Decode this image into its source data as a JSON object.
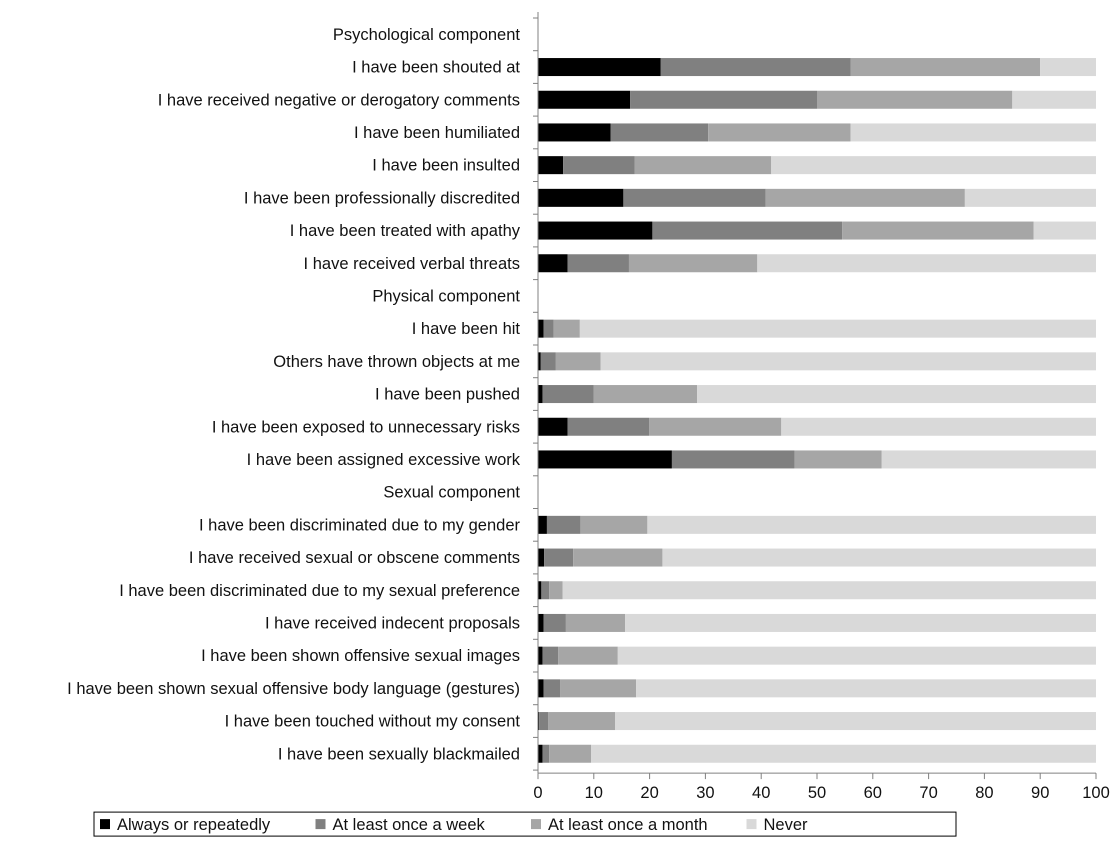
{
  "chart_data": {
    "type": "bar",
    "orientation": "horizontal",
    "stacked": true,
    "categories": [
      "Psychological component",
      "I have been shouted at",
      "I have received negative or derogatory comments",
      "I have been humiliated",
      "I have been insulted",
      "I have been professionally discredited",
      "I have been treated with apathy",
      "I have received verbal threats",
      "Physical component",
      "I have been hit",
      "Others have thrown objects at me",
      "I have been pushed",
      "I have been exposed to unnecessary risks",
      "I have been assigned excessive work",
      "Sexual component",
      "I have been discriminated due to my gender",
      "I have received sexual or obscene comments",
      "I have been discriminated due to my sexual preference",
      "I have received indecent proposals",
      "I have been shown offensive sexual images",
      "I have been shown sexual offensive body language (gestures)",
      "I have been touched without my consent",
      "I have been sexually blackmailed"
    ],
    "series": [
      {
        "name": "Always or repeatedly",
        "color": "#000000",
        "values": [
          null,
          22,
          16.5,
          13,
          4.5,
          15.3,
          20.5,
          5.3,
          null,
          1,
          0.5,
          0.8,
          5.3,
          24,
          null,
          1.6,
          1.1,
          0.6,
          1,
          0.8,
          1,
          0.2,
          0.8
        ]
      },
      {
        "name": "At least once a week",
        "color": "#808080",
        "values": [
          null,
          34,
          33.5,
          17.5,
          12.8,
          25.5,
          34,
          11,
          null,
          1.8,
          2.7,
          9.2,
          14.6,
          22,
          null,
          6,
          5.2,
          1.4,
          4,
          2.8,
          3,
          1.6,
          1.2
        ]
      },
      {
        "name": "At least once a month",
        "color": "#a6a6a6",
        "values": [
          null,
          34,
          35,
          25.5,
          24.5,
          35.7,
          34.3,
          23,
          null,
          4.7,
          8,
          18.5,
          23.7,
          15.6,
          null,
          12,
          16,
          2.4,
          10.6,
          10.7,
          13.6,
          12,
          7.5
        ]
      },
      {
        "name": "Never",
        "color": "#d9d9d9",
        "values": [
          null,
          10,
          15,
          44,
          58.2,
          23.5,
          11.2,
          60.7,
          null,
          92.5,
          88.8,
          71.5,
          56.4,
          38.4,
          null,
          80.4,
          77.7,
          95.6,
          84.4,
          85.7,
          82.4,
          86.2,
          90.5
        ]
      }
    ],
    "xlim": [
      0,
      100
    ],
    "xticks": [
      0,
      10,
      20,
      30,
      40,
      50,
      60,
      70,
      80,
      90,
      100
    ],
    "title": "",
    "xlabel": "",
    "ylabel": "",
    "grid": false,
    "legend_position": "bottom"
  }
}
